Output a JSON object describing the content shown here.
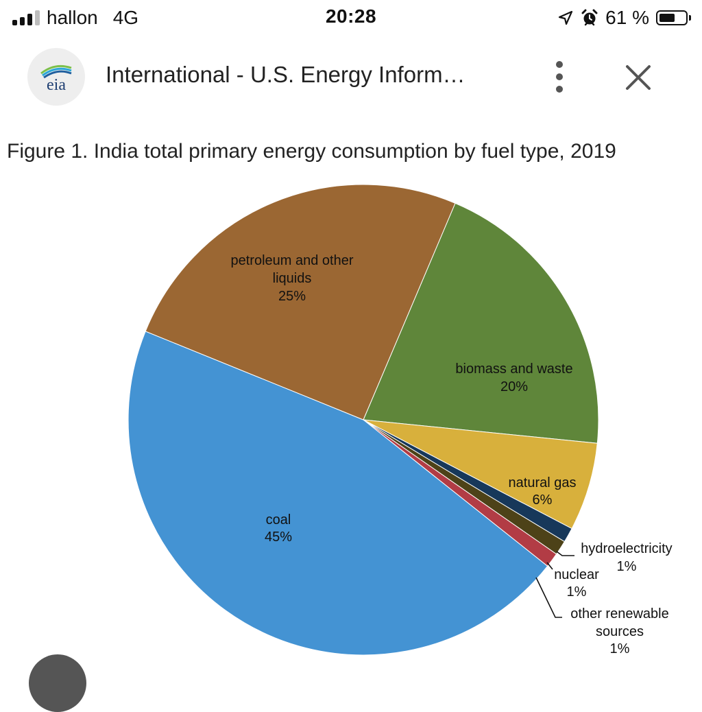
{
  "status_bar": {
    "carrier": "hallon",
    "network": "4G",
    "time": "20:28",
    "battery": "61 %",
    "battery_level": 0.61,
    "icons": [
      "signal-icon",
      "location-arrow-icon",
      "alarm-icon",
      "battery-icon"
    ]
  },
  "header": {
    "logo_text": "eia",
    "title": "International - U.S. Energy Inform…",
    "more_icon": "more-vertical-icon",
    "close_icon": "close-icon"
  },
  "figure": {
    "title": "Figure 1. India total primary energy consumption by fuel type, 2019"
  },
  "chart_data": {
    "type": "pie",
    "title": "Figure 1. India total primary energy consumption by fuel type, 2019",
    "slices": [
      {
        "name": "biomass and waste",
        "value": 20,
        "label": "20%",
        "color": "#5f863a"
      },
      {
        "name": "natural gas",
        "value": 6,
        "label": "6%",
        "color": "#d8b03c"
      },
      {
        "name": "hydroelectricity",
        "value": 1,
        "label": "1%",
        "color": "#17385a"
      },
      {
        "name": "nuclear",
        "value": 1,
        "label": "1%",
        "color": "#4d4218"
      },
      {
        "name": "other renewable sources",
        "value": 1,
        "label": "1%",
        "color": "#b23c45"
      },
      {
        "name": "coal",
        "value": 45,
        "label": "45%",
        "color": "#4493d3"
      },
      {
        "name": "petroleum and other liquids",
        "value": 25,
        "label": "25%",
        "color": "#9b6733"
      }
    ],
    "label_text": {
      "petroleum": [
        "petroleum and other",
        "liquids",
        "25%"
      ],
      "biomass": [
        "biomass and waste",
        "20%"
      ],
      "natural_gas": [
        "natural gas",
        "6%"
      ],
      "coal": [
        "coal",
        "45%"
      ],
      "hydro": [
        "hydroelectricity",
        "1%"
      ],
      "nuclear": [
        "nuclear",
        "1%"
      ],
      "other": [
        "other renewable",
        "sources",
        "1%"
      ]
    }
  }
}
